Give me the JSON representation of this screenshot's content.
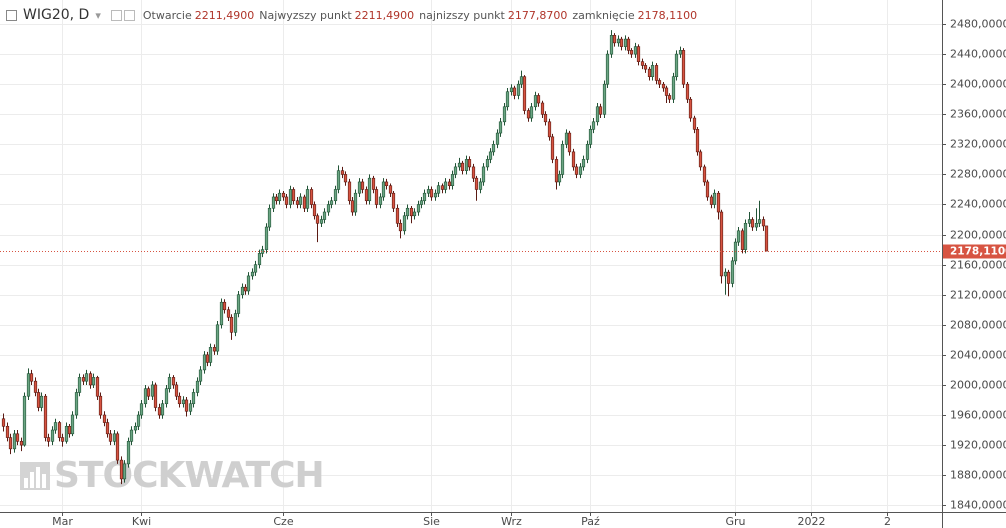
{
  "header": {
    "symbol": "WIG20, D",
    "fields": [
      {
        "label": "Otwarcie",
        "value": "2211,4900"
      },
      {
        "label": "Najwyzszy punkt",
        "value": "2211,4900"
      },
      {
        "label": "najnizszy punkt",
        "value": "2177,8700"
      },
      {
        "label": "zamknięcie",
        "value": "2178,1100"
      }
    ]
  },
  "watermark": "STOCKWATCH",
  "chart_data": {
    "type": "candlestick",
    "up_color": "#6ba583",
    "up_border": "#225437",
    "down_color": "#d75442",
    "down_border": "#5b1a13",
    "grid": true,
    "xlim": [
      -1,
      272
    ],
    "xticks": [
      {
        "value": 17,
        "label": "Mar"
      },
      {
        "value": 40,
        "label": "Kwi"
      },
      {
        "value": 81,
        "label": "Cze"
      },
      {
        "value": 124,
        "label": "Sie"
      },
      {
        "value": 147,
        "label": "Wrz"
      },
      {
        "value": 170,
        "label": "Paź"
      },
      {
        "value": 212,
        "label": "Gru"
      },
      {
        "value": 234,
        "label": "2022"
      },
      {
        "value": 256,
        "label": "2"
      }
    ],
    "ylim": [
      1831,
      2512
    ],
    "yticks": [
      {
        "value": 1840,
        "label": "1840,0000"
      },
      {
        "value": 1880,
        "label": "1880,0000"
      },
      {
        "value": 1920,
        "label": "1920,0000"
      },
      {
        "value": 1960,
        "label": "1960,0000"
      },
      {
        "value": 2000,
        "label": "2000,0000"
      },
      {
        "value": 2040,
        "label": "2040,0000"
      },
      {
        "value": 2080,
        "label": "2080,0000"
      },
      {
        "value": 2120,
        "label": "2120,0000"
      },
      {
        "value": 2160,
        "label": "2160,0000"
      },
      {
        "value": 2200,
        "label": "2200,0000"
      },
      {
        "value": 2240,
        "label": "2240,0000"
      },
      {
        "value": 2280,
        "label": "2280,0000"
      },
      {
        "value": 2320,
        "label": "2320,0000"
      },
      {
        "value": 2360,
        "label": "2360,0000"
      },
      {
        "value": 2400,
        "label": "2400,0000"
      },
      {
        "value": 2440,
        "label": "2440,0000"
      },
      {
        "value": 2480,
        "label": "2480,0000"
      }
    ],
    "last_price": {
      "value": 2178.11,
      "label": "2178,1100"
    },
    "candles": [
      [
        1955,
        1962,
        1938,
        1945
      ],
      [
        1945,
        1950,
        1925,
        1930
      ],
      [
        1930,
        1935,
        1908,
        1915
      ],
      [
        1915,
        1940,
        1910,
        1935
      ],
      [
        1935,
        1940,
        1920,
        1925
      ],
      [
        1925,
        1930,
        1912,
        1920
      ],
      [
        1920,
        1990,
        1918,
        1985
      ],
      [
        1985,
        2022,
        1980,
        2015
      ],
      [
        2015,
        2020,
        2000,
        2005
      ],
      [
        2005,
        2010,
        1985,
        1990
      ],
      [
        1990,
        1995,
        1965,
        1970
      ],
      [
        1970,
        1990,
        1965,
        1985
      ],
      [
        1985,
        1988,
        1925,
        1930
      ],
      [
        1930,
        1935,
        1918,
        1925
      ],
      [
        1925,
        1945,
        1920,
        1940
      ],
      [
        1940,
        1955,
        1935,
        1950
      ],
      [
        1950,
        1952,
        1925,
        1930
      ],
      [
        1930,
        1935,
        1918,
        1925
      ],
      [
        1925,
        1950,
        1922,
        1945
      ],
      [
        1945,
        1948,
        1930,
        1935
      ],
      [
        1935,
        1965,
        1932,
        1960
      ],
      [
        1960,
        1995,
        1955,
        1990
      ],
      [
        1990,
        2015,
        1985,
        2010
      ],
      [
        2010,
        2014,
        2000,
        2005
      ],
      [
        2005,
        2020,
        2000,
        2015
      ],
      [
        2015,
        2018,
        1995,
        2000
      ],
      [
        2000,
        2015,
        1996,
        2010
      ],
      [
        2010,
        2012,
        1980,
        1985
      ],
      [
        1985,
        1990,
        1955,
        1960
      ],
      [
        1960,
        1965,
        1945,
        1950
      ],
      [
        1950,
        1955,
        1930,
        1935
      ],
      [
        1935,
        1940,
        1920,
        1925
      ],
      [
        1925,
        1940,
        1920,
        1935
      ],
      [
        1935,
        1938,
        1895,
        1900
      ],
      [
        1900,
        1905,
        1868,
        1875
      ],
      [
        1875,
        1900,
        1870,
        1895
      ],
      [
        1895,
        1930,
        1890,
        1925
      ],
      [
        1925,
        1945,
        1920,
        1940
      ],
      [
        1940,
        1950,
        1935,
        1945
      ],
      [
        1945,
        1965,
        1940,
        1960
      ],
      [
        1960,
        1980,
        1955,
        1975
      ],
      [
        1975,
        2000,
        1970,
        1995
      ],
      [
        1995,
        1998,
        1980,
        1985
      ],
      [
        1985,
        2005,
        1980,
        2000
      ],
      [
        2000,
        2003,
        1965,
        1970
      ],
      [
        1970,
        1975,
        1955,
        1960
      ],
      [
        1960,
        1980,
        1955,
        1975
      ],
      [
        1975,
        2000,
        1970,
        1995
      ],
      [
        1995,
        2015,
        1990,
        2010
      ],
      [
        2010,
        2013,
        1995,
        2000
      ],
      [
        2000,
        2004,
        1980,
        1985
      ],
      [
        1985,
        1990,
        1970,
        1975
      ],
      [
        1975,
        1985,
        1970,
        1980
      ],
      [
        1980,
        1984,
        1958,
        1965
      ],
      [
        1965,
        1980,
        1960,
        1975
      ],
      [
        1975,
        1995,
        1970,
        1990
      ],
      [
        1990,
        2010,
        1985,
        2005
      ],
      [
        2005,
        2025,
        2000,
        2020
      ],
      [
        2020,
        2045,
        2015,
        2040
      ],
      [
        2040,
        2044,
        2025,
        2030
      ],
      [
        2030,
        2055,
        2025,
        2050
      ],
      [
        2050,
        2054,
        2040,
        2045
      ],
      [
        2045,
        2085,
        2040,
        2080
      ],
      [
        2080,
        2115,
        2075,
        2110
      ],
      [
        2110,
        2114,
        2095,
        2100
      ],
      [
        2100,
        2104,
        2085,
        2090
      ],
      [
        2090,
        2094,
        2060,
        2070
      ],
      [
        2070,
        2100,
        2065,
        2095
      ],
      [
        2095,
        2125,
        2090,
        2120
      ],
      [
        2120,
        2135,
        2115,
        2130
      ],
      [
        2130,
        2134,
        2120,
        2125
      ],
      [
        2125,
        2150,
        2120,
        2145
      ],
      [
        2145,
        2155,
        2140,
        2150
      ],
      [
        2150,
        2165,
        2145,
        2160
      ],
      [
        2160,
        2180,
        2155,
        2175
      ],
      [
        2175,
        2185,
        2170,
        2180
      ],
      [
        2180,
        2215,
        2175,
        2210
      ],
      [
        2210,
        2240,
        2205,
        2235
      ],
      [
        2235,
        2255,
        2230,
        2250
      ],
      [
        2250,
        2254,
        2240,
        2245
      ],
      [
        2245,
        2260,
        2240,
        2255
      ],
      [
        2255,
        2258,
        2245,
        2250
      ],
      [
        2250,
        2254,
        2235,
        2240
      ],
      [
        2240,
        2265,
        2235,
        2260
      ],
      [
        2260,
        2263,
        2240,
        2245
      ],
      [
        2245,
        2250,
        2235,
        2240
      ],
      [
        2240,
        2255,
        2235,
        2250
      ],
      [
        2250,
        2253,
        2230,
        2235
      ],
      [
        2235,
        2265,
        2230,
        2260
      ],
      [
        2260,
        2263,
        2235,
        2240
      ],
      [
        2240,
        2244,
        2220,
        2225
      ],
      [
        2225,
        2228,
        2190,
        2215
      ],
      [
        2215,
        2225,
        2210,
        2220
      ],
      [
        2220,
        2235,
        2215,
        2230
      ],
      [
        2230,
        2245,
        2225,
        2240
      ],
      [
        2240,
        2250,
        2235,
        2245
      ],
      [
        2245,
        2265,
        2240,
        2260
      ],
      [
        2260,
        2292,
        2255,
        2285
      ],
      [
        2285,
        2290,
        2275,
        2280
      ],
      [
        2280,
        2284,
        2265,
        2270
      ],
      [
        2270,
        2274,
        2240,
        2245
      ],
      [
        2245,
        2250,
        2225,
        2230
      ],
      [
        2230,
        2260,
        2225,
        2255
      ],
      [
        2255,
        2275,
        2250,
        2270
      ],
      [
        2270,
        2274,
        2255,
        2260
      ],
      [
        2260,
        2264,
        2240,
        2245
      ],
      [
        2245,
        2280,
        2240,
        2275
      ],
      [
        2275,
        2278,
        2255,
        2260
      ],
      [
        2260,
        2264,
        2235,
        2240
      ],
      [
        2240,
        2255,
        2235,
        2250
      ],
      [
        2250,
        2275,
        2245,
        2270
      ],
      [
        2270,
        2274,
        2260,
        2265
      ],
      [
        2265,
        2268,
        2250,
        2255
      ],
      [
        2255,
        2258,
        2230,
        2235
      ],
      [
        2235,
        2240,
        2210,
        2215
      ],
      [
        2215,
        2220,
        2195,
        2205
      ],
      [
        2205,
        2230,
        2200,
        2225
      ],
      [
        2225,
        2240,
        2220,
        2235
      ],
      [
        2235,
        2238,
        2215,
        2225
      ],
      [
        2225,
        2235,
        2220,
        2230
      ],
      [
        2230,
        2245,
        2225,
        2240
      ],
      [
        2240,
        2250,
        2235,
        2245
      ],
      [
        2245,
        2260,
        2240,
        2255
      ],
      [
        2255,
        2265,
        2250,
        2260
      ],
      [
        2260,
        2264,
        2245,
        2250
      ],
      [
        2250,
        2260,
        2245,
        2255
      ],
      [
        2255,
        2270,
        2250,
        2265
      ],
      [
        2265,
        2268,
        2255,
        2260
      ],
      [
        2260,
        2275,
        2255,
        2270
      ],
      [
        2270,
        2274,
        2260,
        2265
      ],
      [
        2265,
        2285,
        2260,
        2280
      ],
      [
        2280,
        2295,
        2275,
        2290
      ],
      [
        2290,
        2302,
        2285,
        2295
      ],
      [
        2295,
        2298,
        2280,
        2285
      ],
      [
        2285,
        2305,
        2280,
        2300
      ],
      [
        2300,
        2304,
        2285,
        2290
      ],
      [
        2290,
        2294,
        2270,
        2275
      ],
      [
        2275,
        2278,
        2245,
        2260
      ],
      [
        2260,
        2275,
        2255,
        2270
      ],
      [
        2270,
        2295,
        2265,
        2290
      ],
      [
        2290,
        2305,
        2285,
        2300
      ],
      [
        2300,
        2315,
        2295,
        2310
      ],
      [
        2310,
        2325,
        2305,
        2320
      ],
      [
        2320,
        2340,
        2315,
        2335
      ],
      [
        2335,
        2355,
        2330,
        2350
      ],
      [
        2350,
        2375,
        2345,
        2370
      ],
      [
        2370,
        2395,
        2365,
        2390
      ],
      [
        2390,
        2400,
        2385,
        2395
      ],
      [
        2395,
        2398,
        2380,
        2385
      ],
      [
        2385,
        2405,
        2380,
        2400
      ],
      [
        2400,
        2418,
        2395,
        2410
      ],
      [
        2410,
        2412,
        2360,
        2365
      ],
      [
        2365,
        2368,
        2350,
        2355
      ],
      [
        2355,
        2375,
        2350,
        2370
      ],
      [
        2370,
        2390,
        2365,
        2385
      ],
      [
        2385,
        2388,
        2370,
        2375
      ],
      [
        2375,
        2378,
        2355,
        2360
      ],
      [
        2360,
        2364,
        2345,
        2350
      ],
      [
        2350,
        2354,
        2325,
        2330
      ],
      [
        2330,
        2334,
        2295,
        2300
      ],
      [
        2300,
        2304,
        2260,
        2270
      ],
      [
        2270,
        2285,
        2265,
        2280
      ],
      [
        2280,
        2325,
        2275,
        2320
      ],
      [
        2320,
        2340,
        2315,
        2335
      ],
      [
        2335,
        2338,
        2305,
        2310
      ],
      [
        2310,
        2314,
        2285,
        2290
      ],
      [
        2290,
        2294,
        2275,
        2280
      ],
      [
        2280,
        2295,
        2275,
        2290
      ],
      [
        2290,
        2305,
        2285,
        2300
      ],
      [
        2300,
        2325,
        2295,
        2320
      ],
      [
        2320,
        2345,
        2315,
        2340
      ],
      [
        2340,
        2355,
        2335,
        2350
      ],
      [
        2350,
        2375,
        2345,
        2370
      ],
      [
        2370,
        2374,
        2355,
        2360
      ],
      [
        2360,
        2405,
        2355,
        2400
      ],
      [
        2400,
        2445,
        2395,
        2440
      ],
      [
        2440,
        2472,
        2435,
        2465
      ],
      [
        2465,
        2468,
        2450,
        2455
      ],
      [
        2455,
        2465,
        2450,
        2460
      ],
      [
        2460,
        2463,
        2445,
        2450
      ],
      [
        2450,
        2465,
        2445,
        2460
      ],
      [
        2460,
        2463,
        2440,
        2445
      ],
      [
        2445,
        2448,
        2435,
        2440
      ],
      [
        2440,
        2455,
        2435,
        2450
      ],
      [
        2450,
        2453,
        2425,
        2430
      ],
      [
        2430,
        2434,
        2420,
        2425
      ],
      [
        2425,
        2428,
        2415,
        2420
      ],
      [
        2420,
        2423,
        2405,
        2410
      ],
      [
        2410,
        2430,
        2405,
        2425
      ],
      [
        2425,
        2428,
        2400,
        2405
      ],
      [
        2405,
        2408,
        2395,
        2400
      ],
      [
        2400,
        2403,
        2390,
        2395
      ],
      [
        2395,
        2398,
        2375,
        2385
      ],
      [
        2385,
        2388,
        2375,
        2380
      ],
      [
        2380,
        2415,
        2375,
        2410
      ],
      [
        2410,
        2445,
        2405,
        2440
      ],
      [
        2440,
        2450,
        2435,
        2445
      ],
      [
        2445,
        2448,
        2395,
        2400
      ],
      [
        2400,
        2403,
        2375,
        2380
      ],
      [
        2380,
        2383,
        2350,
        2355
      ],
      [
        2355,
        2358,
        2335,
        2340
      ],
      [
        2340,
        2343,
        2305,
        2310
      ],
      [
        2310,
        2313,
        2285,
        2290
      ],
      [
        2290,
        2293,
        2265,
        2270
      ],
      [
        2270,
        2273,
        2245,
        2250
      ],
      [
        2250,
        2253,
        2235,
        2240
      ],
      [
        2240,
        2260,
        2235,
        2255
      ],
      [
        2255,
        2258,
        2220,
        2230
      ],
      [
        2230,
        2233,
        2135,
        2145
      ],
      [
        2145,
        2155,
        2120,
        2150
      ],
      [
        2150,
        2153,
        2118,
        2135
      ],
      [
        2135,
        2170,
        2130,
        2165
      ],
      [
        2165,
        2195,
        2160,
        2190
      ],
      [
        2190,
        2210,
        2185,
        2205
      ],
      [
        2205,
        2208,
        2175,
        2180
      ],
      [
        2180,
        2220,
        2175,
        2215
      ],
      [
        2215,
        2230,
        2210,
        2220
      ],
      [
        2220,
        2223,
        2205,
        2210
      ],
      [
        2210,
        2235,
        2205,
        2215
      ],
      [
        2215,
        2245,
        2210,
        2220
      ],
      [
        2220,
        2224,
        2205,
        2211.49
      ],
      [
        2211.49,
        2211.49,
        2177.87,
        2178.11
      ]
    ]
  }
}
